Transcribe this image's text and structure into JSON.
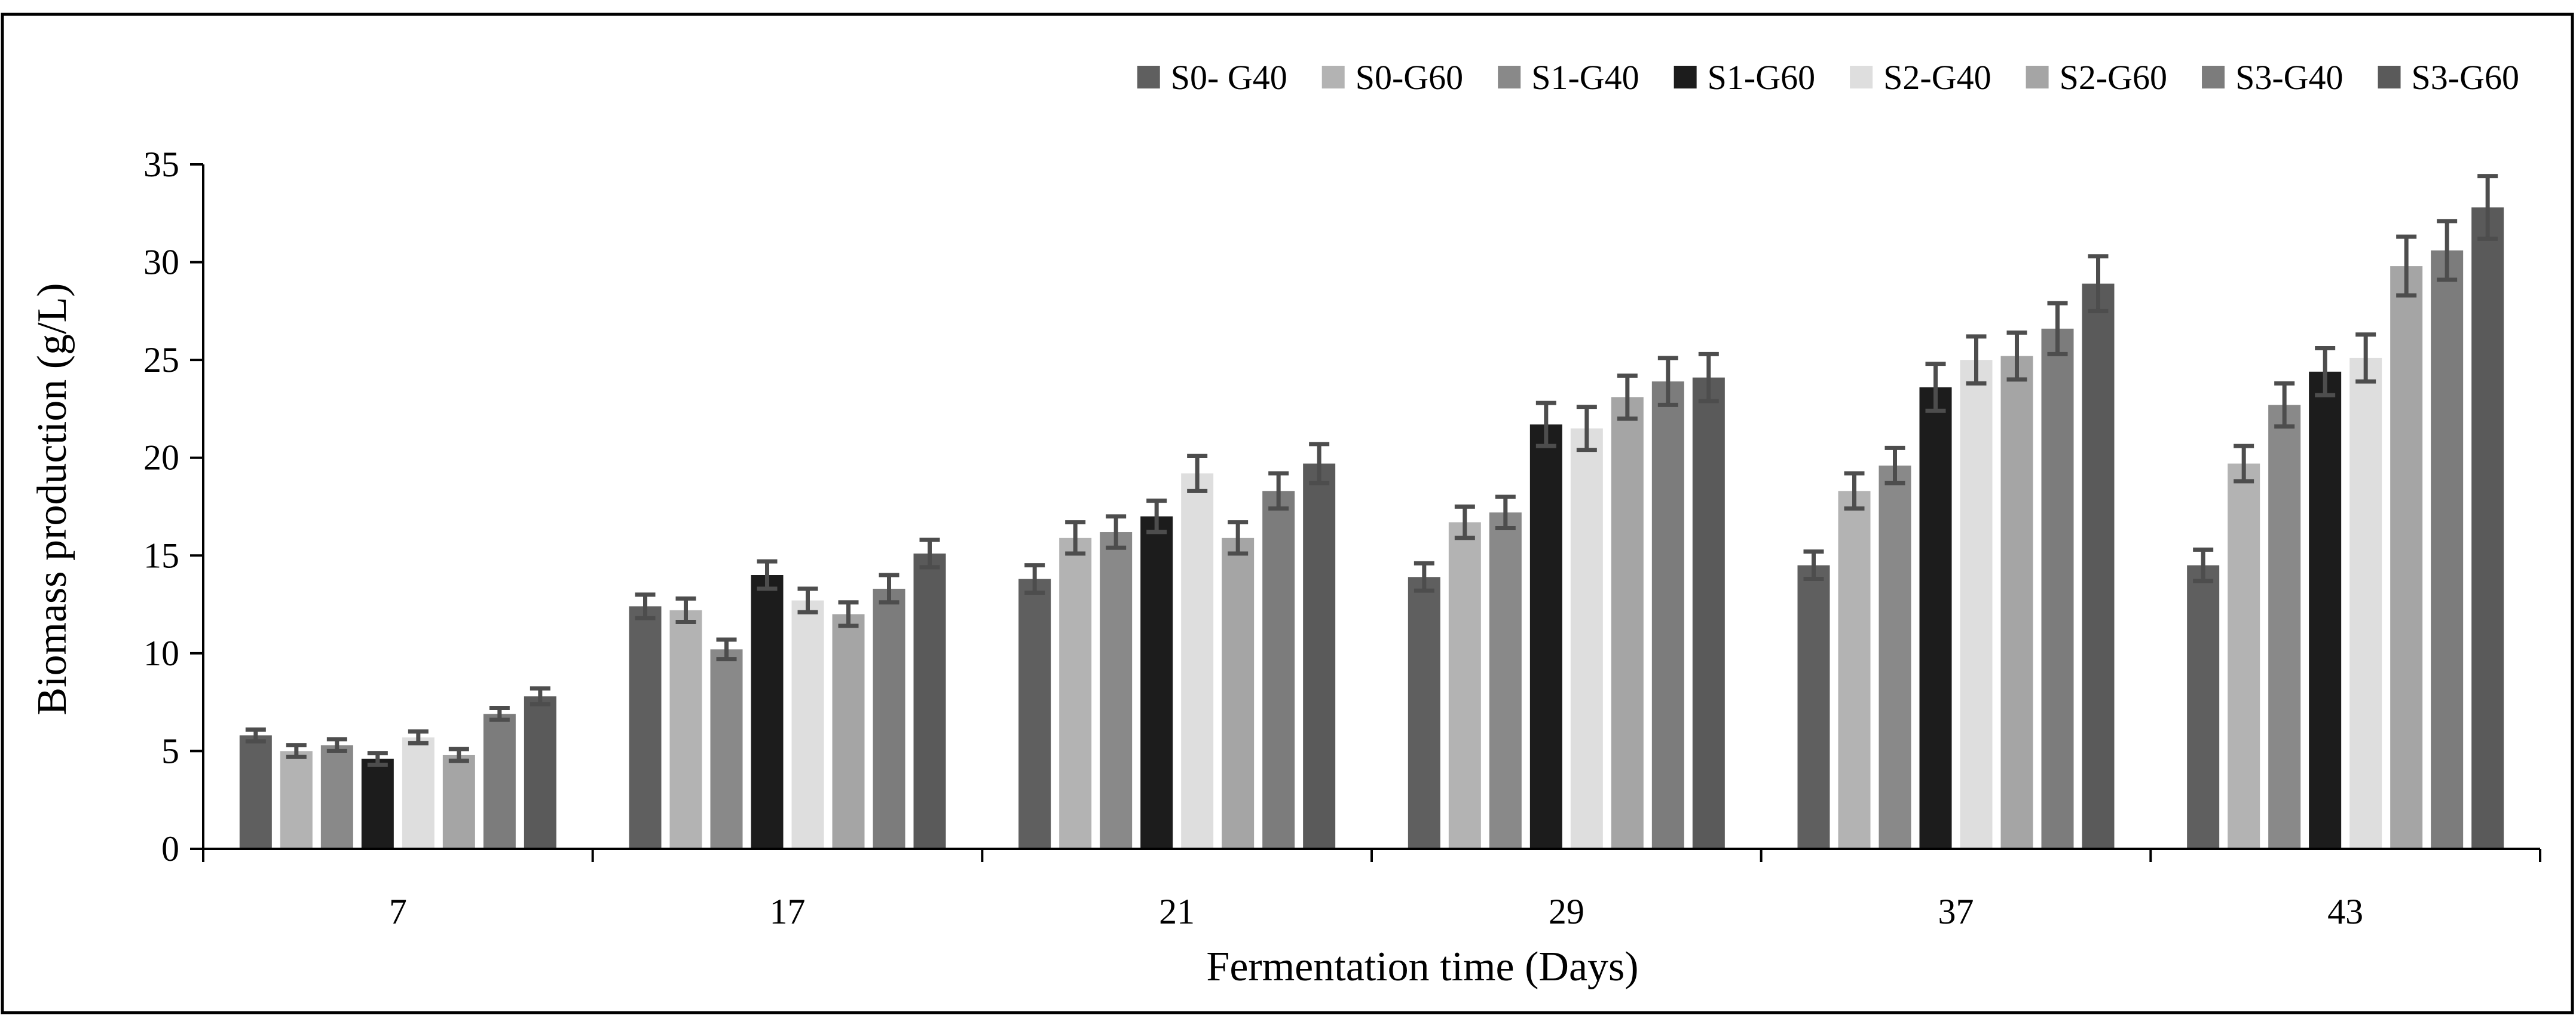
{
  "chart_data": {
    "type": "bar",
    "title": "",
    "xlabel": "Fermentation time (Days)",
    "ylabel": "Biomass production (g/L)",
    "ylim": [
      0,
      35
    ],
    "yticks": [
      "0",
      "5",
      "10",
      "15",
      "20",
      "25",
      "30",
      "35"
    ],
    "categories": [
      "7",
      "17",
      "21",
      "29",
      "37",
      "43"
    ],
    "legend_position": "top-right",
    "grid": false,
    "series": [
      {
        "name": "S0- G40",
        "color": "#5f5f5f",
        "values": [
          5.8,
          12.4,
          13.8,
          13.9,
          14.5,
          14.5
        ],
        "errors": [
          0.3,
          0.6,
          0.7,
          0.7,
          0.7,
          0.8
        ]
      },
      {
        "name": "S0-G60",
        "color": "#b3b3b3",
        "values": [
          5.0,
          12.2,
          15.9,
          16.7,
          18.3,
          19.7
        ],
        "errors": [
          0.3,
          0.6,
          0.8,
          0.8,
          0.9,
          0.9
        ]
      },
      {
        "name": "S1-G40",
        "color": "#898989",
        "values": [
          5.3,
          10.2,
          16.2,
          17.2,
          19.6,
          22.7
        ],
        "errors": [
          0.3,
          0.5,
          0.8,
          0.8,
          0.9,
          1.1
        ]
      },
      {
        "name": "S1-G60",
        "color": "#1c1c1c",
        "values": [
          4.6,
          14.0,
          17.0,
          21.7,
          23.6,
          24.4
        ],
        "errors": [
          0.3,
          0.7,
          0.8,
          1.1,
          1.2,
          1.2
        ]
      },
      {
        "name": "S2-G40",
        "color": "#dedede",
        "values": [
          5.7,
          12.7,
          19.2,
          21.5,
          25.0,
          25.1
        ],
        "errors": [
          0.3,
          0.6,
          0.9,
          1.1,
          1.2,
          1.2
        ]
      },
      {
        "name": "S2-G60",
        "color": "#a5a5a5",
        "values": [
          4.8,
          12.0,
          15.9,
          23.1,
          25.2,
          29.8
        ],
        "errors": [
          0.3,
          0.6,
          0.8,
          1.1,
          1.2,
          1.5
        ]
      },
      {
        "name": "S3-G40",
        "color": "#7c7c7c",
        "values": [
          6.9,
          13.3,
          18.3,
          23.9,
          26.6,
          30.6
        ],
        "errors": [
          0.3,
          0.7,
          0.9,
          1.2,
          1.3,
          1.5
        ]
      },
      {
        "name": "S3-G60",
        "color": "#5a5a5a",
        "values": [
          7.8,
          15.1,
          19.7,
          24.1,
          28.9,
          32.8
        ],
        "errors": [
          0.4,
          0.7,
          1.0,
          1.2,
          1.4,
          1.6
        ]
      }
    ]
  }
}
